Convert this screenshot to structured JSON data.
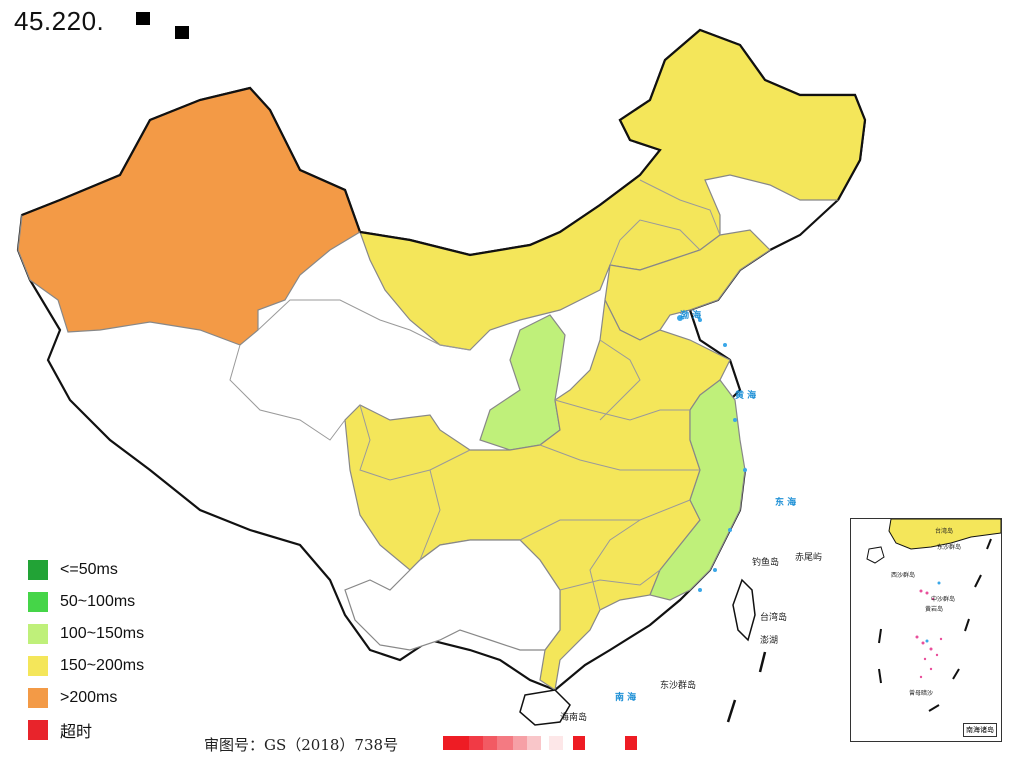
{
  "title": "45.220.",
  "legend": [
    {
      "label": "<=50ms",
      "color": "#22a336"
    },
    {
      "label": "50~100ms",
      "color": "#45d548"
    },
    {
      "label": "100~150ms",
      "color": "#bff07a"
    },
    {
      "label": "150~200ms",
      "color": "#f4e65a"
    },
    {
      "label": ">200ms",
      "color": "#f39a46"
    },
    {
      "label": "超时",
      "color": "#e8242b"
    }
  ],
  "approval_number": "审图号：GS（2018）738号",
  "map_labels": {
    "bohai": "渤 海",
    "huanghai": "黄 海",
    "donghai": "东 海",
    "nanhai": "南 海",
    "taiwan": "台湾岛",
    "hainan": "海南岛",
    "diaoyu": "钓鱼岛",
    "chiwei": "赤尾屿",
    "penghu": "澎湖",
    "dongsha": "东沙群岛"
  },
  "inset": {
    "caption": "南海诸岛",
    "labels": {
      "dongsha": "东沙群岛",
      "xisha": "西沙群岛",
      "zhongsha": "中沙群岛",
      "nansha": "南沙群岛",
      "huangyan": "黄岩岛",
      "taiwan": "台湾岛",
      "zengmu": "曾母暗沙"
    }
  },
  "colors": {
    "high": "#f39a46",
    "mid": "#f4e65a",
    "low": "#bff07a",
    "none": "#ffffff",
    "border": "#9a9a9a",
    "coast": "#111111",
    "sea": "#3aa7e8"
  }
}
